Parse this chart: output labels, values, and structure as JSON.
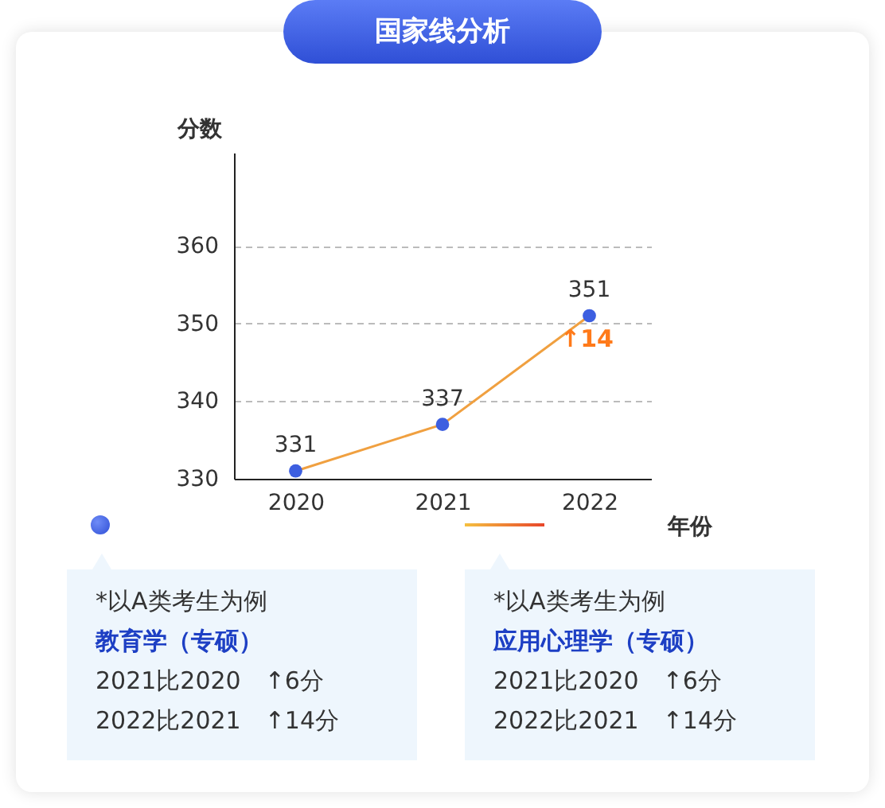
{
  "chart_data": {
    "type": "line",
    "title": "国家线分析",
    "xlabel": "年份",
    "ylabel": "分数",
    "categories": [
      "2020",
      "2021",
      "2022"
    ],
    "series": [
      {
        "color": "#f0a040",
        "colors": [
          "#3d5fe0",
          "#3d5fe0",
          "#3d5fe0"
        ],
        "values": [
          331,
          337,
          351
        ]
      }
    ],
    "ylim": [
      330,
      372
    ],
    "yticks": [
      330,
      340,
      350,
      360
    ],
    "grid": "y",
    "marker": "circle",
    "data_labels": true,
    "annotations": [
      "↑14",
      "*以A类考生为例",
      "教育学（专硕）",
      "2021比2020　↑6分",
      "2022比2021　↑14分",
      "*以A类考生为例",
      "应用心理学（专硕）",
      "2021比2020　↑6分",
      "2022比2021　↑14分"
    ]
  }
}
